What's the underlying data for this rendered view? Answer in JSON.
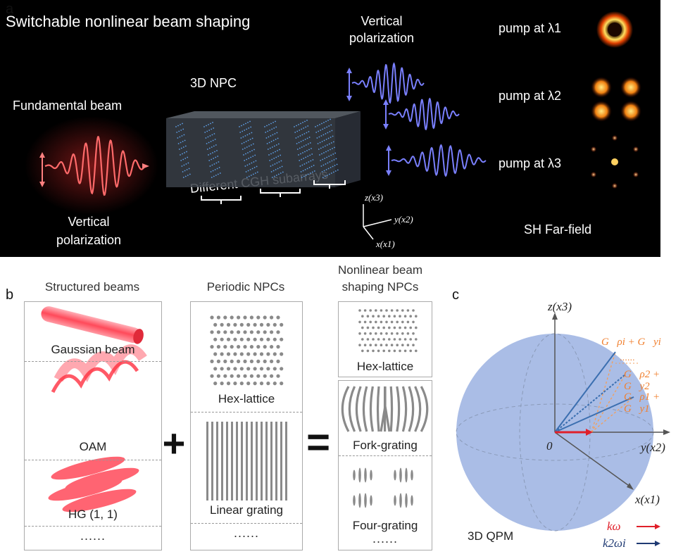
{
  "panel_labels": {
    "a": "a",
    "b": "b",
    "c": "c"
  },
  "panel_a": {
    "title": "Switchable nonlinear beam shaping",
    "fundamental_beam": "Fundamental beam",
    "vertical_polarization_left": "Vertical\npolarization",
    "vertical_polarization_top": "Vertical\npolarization",
    "npc_label": "3D NPC",
    "subarrays_label": "Different CGH subarrays",
    "axis_z": "z(x3)",
    "axis_y": "y(x2)",
    "axis_x": "x(x1)",
    "pump_1": "pump at λ1",
    "pump_2": "pump at λ2",
    "pump_3": "pump at λ3",
    "far_field": "SH Far-field",
    "colors": {
      "fundamental": "#ff5a5a",
      "sh": "#6f74ff",
      "crystal": "#3a4048"
    }
  },
  "panel_b": {
    "col1_header": "Structured beams",
    "col2_header": "Periodic NPCs",
    "col3_header": "Nonlinear beam\nshaping NPCs",
    "col1_items": [
      "Gaussian beam",
      "OAM",
      "HG (1, 1)",
      "......"
    ],
    "col2_items": [
      "Hex-lattice",
      "Linear grating",
      "......"
    ],
    "col3_items": [
      "Hex-lattice",
      "Fork-grating",
      "Four-grating",
      "......"
    ],
    "plus": "+",
    "equals": "=",
    "colors": {
      "beam": "#ff4a5a",
      "lattice": "#8a8a8a"
    }
  },
  "panel_c": {
    "axis_z": "z(x3)",
    "axis_y": "y(x2)",
    "axis_x": "x(x1)",
    "origin": "0",
    "vec_i": "G⃗ρi + G⃗yi",
    "vec_2": "G⃗ρ2 + G⃗y2",
    "vec_1": "G⃗ρ1 + G⃗y1",
    "dots": "......",
    "qpm_label": "3D QPM",
    "legend_k_omega": "kω",
    "legend_k_2omega": "k2ωi",
    "colors": {
      "sphere": "#aabde6",
      "vector": "#3b6fb0",
      "reciprocal": "#f0a060",
      "k_omega": "#e0202a",
      "k_2omega": "#1f3a73"
    }
  }
}
